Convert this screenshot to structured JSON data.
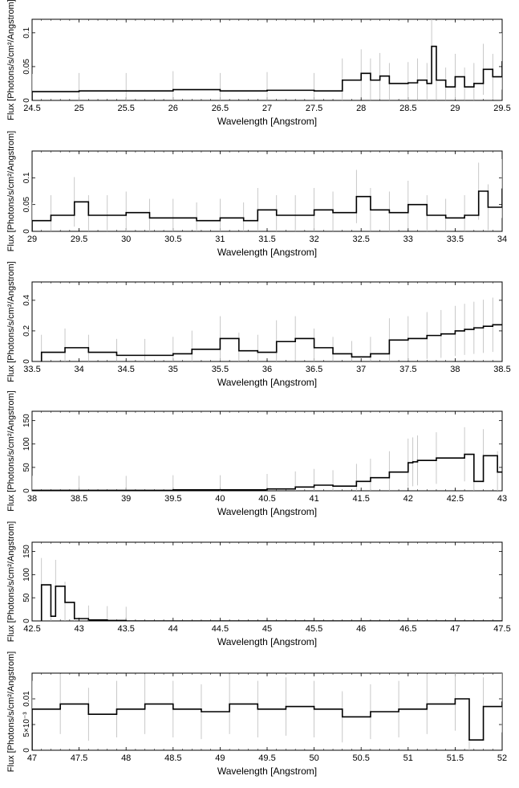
{
  "chart_data": [
    {
      "type": "line",
      "title": "",
      "xlabel": "Wavelength [Angstrom]",
      "ylabel": "Flux [Photons/s/cm²/Angstrom]",
      "xlim": [
        24.5,
        29.5
      ],
      "ylim": [
        0,
        0.12
      ],
      "xticks": [
        24.5,
        25,
        25.5,
        26,
        26.5,
        27,
        27.5,
        28,
        28.5,
        29,
        29.5
      ],
      "yticks": [
        0,
        0.05,
        0.1
      ],
      "yticklabels": [
        "0",
        "0.05",
        "0.1"
      ],
      "series": [
        {
          "x": [
            24.5,
            25.0,
            25.5,
            26.0,
            26.5,
            27.0,
            27.5,
            27.8,
            28.0,
            28.1,
            28.2,
            28.3,
            28.5,
            28.6,
            28.7,
            28.75,
            28.8,
            28.9,
            29.0,
            29.1,
            29.2,
            29.3,
            29.4,
            29.5
          ],
          "y": [
            0.013,
            0.014,
            0.014,
            0.016,
            0.014,
            0.015,
            0.014,
            0.03,
            0.04,
            0.03,
            0.036,
            0.025,
            0.026,
            0.03,
            0.025,
            0.08,
            0.03,
            0.02,
            0.035,
            0.02,
            0.025,
            0.046,
            0.035,
            0.058
          ]
        }
      ]
    },
    {
      "type": "line",
      "title": "",
      "xlabel": "Wavelength [Angstrom]",
      "ylabel": "Flux [Photons/s/cm²/Angstrom]",
      "xlim": [
        29,
        34
      ],
      "ylim": [
        0,
        0.15
      ],
      "xticks": [
        29,
        29.5,
        30,
        30.5,
        31,
        31.5,
        32,
        32.5,
        33,
        33.5,
        34
      ],
      "yticks": [
        0,
        0.05,
        0.1
      ],
      "yticklabels": [
        "0",
        "0.05",
        "0.1"
      ],
      "series": [
        {
          "x": [
            29.0,
            29.2,
            29.45,
            29.6,
            29.8,
            30.0,
            30.25,
            30.5,
            30.75,
            31.0,
            31.25,
            31.4,
            31.6,
            31.8,
            32.0,
            32.2,
            32.45,
            32.6,
            32.8,
            33.0,
            33.2,
            33.4,
            33.6,
            33.75,
            33.85,
            34.0
          ],
          "y": [
            0.02,
            0.03,
            0.055,
            0.03,
            0.03,
            0.035,
            0.025,
            0.025,
            0.02,
            0.025,
            0.02,
            0.04,
            0.03,
            0.03,
            0.04,
            0.035,
            0.065,
            0.04,
            0.035,
            0.05,
            0.03,
            0.025,
            0.03,
            0.075,
            0.045,
            0.08
          ]
        }
      ]
    },
    {
      "type": "line",
      "title": "",
      "xlabel": "Wavelength [Angstrom]",
      "ylabel": "Flux [Photons/s/cm²/Angstrom]",
      "xlim": [
        33.5,
        38.5
      ],
      "ylim": [
        0,
        0.52
      ],
      "xticks": [
        33.5,
        34,
        34.5,
        35,
        35.5,
        36,
        36.5,
        37,
        37.5,
        38,
        38.5
      ],
      "yticks": [
        0,
        0.2,
        0.4
      ],
      "yticklabels": [
        "0",
        "0.2",
        "0.4"
      ],
      "series": [
        {
          "x": [
            33.6,
            33.85,
            34.1,
            34.4,
            34.7,
            35.0,
            35.2,
            35.5,
            35.7,
            35.9,
            36.1,
            36.3,
            36.5,
            36.7,
            36.9,
            37.1,
            37.3,
            37.5,
            37.7,
            37.85,
            38.0,
            38.1,
            38.2,
            38.3,
            38.4
          ],
          "y": [
            0.06,
            0.09,
            0.06,
            0.04,
            0.04,
            0.05,
            0.08,
            0.15,
            0.07,
            0.06,
            0.13,
            0.15,
            0.09,
            0.05,
            0.03,
            0.05,
            0.14,
            0.15,
            0.17,
            0.18,
            0.2,
            0.21,
            0.22,
            0.23,
            0.24
          ]
        }
      ]
    },
    {
      "type": "line",
      "title": "",
      "xlabel": "Wavelength [Angstrom]",
      "ylabel": "Flux [Photons/s/cm²/Angstrom]",
      "xlim": [
        38,
        43
      ],
      "ylim": [
        0,
        170
      ],
      "xticks": [
        38,
        38.5,
        39,
        39.5,
        40,
        40.5,
        41,
        41.5,
        42,
        42.5,
        43
      ],
      "yticks": [
        0,
        50,
        100,
        150
      ],
      "yticklabels": [
        "0",
        "50",
        "100",
        "150"
      ],
      "series": [
        {
          "x": [
            38.0,
            38.5,
            39.0,
            39.5,
            40.0,
            40.5,
            40.8,
            41.0,
            41.2,
            41.45,
            41.6,
            41.8,
            42.0,
            42.05,
            42.1,
            42.3,
            42.6,
            42.7,
            42.8,
            42.95
          ],
          "y": [
            1,
            1,
            1,
            2,
            2,
            4,
            8,
            12,
            10,
            20,
            28,
            40,
            60,
            62,
            65,
            70,
            78,
            20,
            75,
            40
          ]
        }
      ]
    },
    {
      "type": "line",
      "title": "",
      "xlabel": "Wavelength [Angstrom]",
      "ylabel": "Flux [Photons/s/cm²/Angstrom]",
      "xlim": [
        42.5,
        47.5
      ],
      "ylim": [
        0,
        170
      ],
      "xticks": [
        42.5,
        43,
        43.5,
        44,
        44.5,
        45,
        45.5,
        46,
        46.5,
        47,
        47.5
      ],
      "yticks": [
        0,
        50,
        100,
        150
      ],
      "yticklabels": [
        "0",
        "50",
        "100",
        "150"
      ],
      "series": [
        {
          "x": [
            42.6,
            42.7,
            42.75,
            42.85,
            42.95,
            43.1,
            43.3,
            43.5
          ],
          "y": [
            78,
            10,
            75,
            40,
            5,
            2,
            1,
            0
          ]
        }
      ]
    },
    {
      "type": "line",
      "title": "",
      "xlabel": "Wavelength [Angstrom]",
      "ylabel": "Flux [Photons/s/cm²/Angstrom]",
      "xlim": [
        47,
        52
      ],
      "ylim": [
        0,
        0.015
      ],
      "xticks": [
        47,
        47.5,
        48,
        48.5,
        49,
        49.5,
        50,
        50.5,
        51,
        51.5,
        52
      ],
      "yticks": [
        0,
        0.005,
        0.01
      ],
      "yticklabels": [
        "0",
        "5×10⁻³",
        "0.01"
      ],
      "series": [
        {
          "x": [
            47.0,
            47.3,
            47.6,
            47.9,
            48.2,
            48.5,
            48.8,
            49.1,
            49.4,
            49.7,
            50.0,
            50.3,
            50.6,
            50.9,
            51.2,
            51.5,
            51.65,
            51.8,
            52.0
          ],
          "y": [
            0.008,
            0.009,
            0.007,
            0.008,
            0.009,
            0.008,
            0.0075,
            0.009,
            0.008,
            0.0085,
            0.008,
            0.0065,
            0.0075,
            0.008,
            0.009,
            0.01,
            0.002,
            0.0085,
            0.0095
          ]
        }
      ]
    }
  ]
}
